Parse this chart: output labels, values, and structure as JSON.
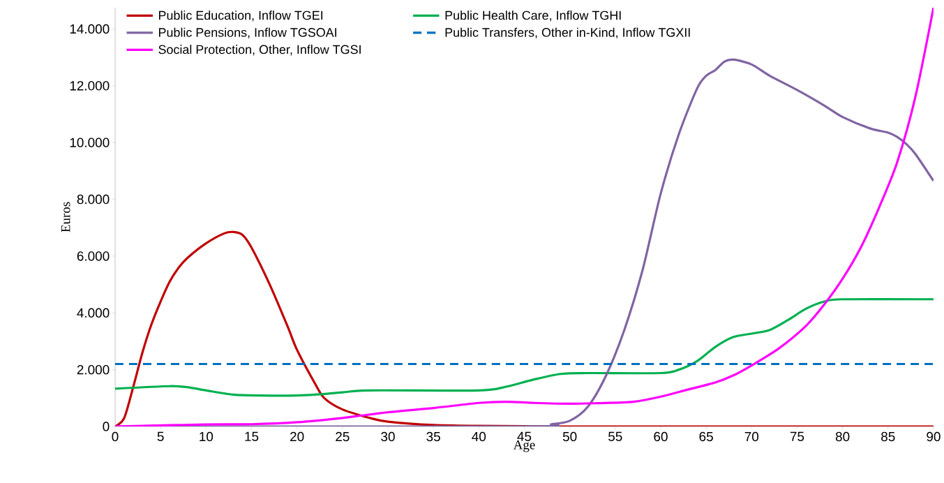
{
  "chart_data": {
    "type": "line",
    "xlabel": "Age",
    "ylabel": "Euros",
    "xlim": [
      0,
      90
    ],
    "ylim": [
      0,
      14750
    ],
    "xticks": [
      0,
      5,
      10,
      15,
      20,
      25,
      30,
      35,
      40,
      45,
      50,
      55,
      60,
      65,
      70,
      75,
      80,
      85,
      90
    ],
    "yticks": [
      {
        "value": 0,
        "label": "0"
      },
      {
        "value": 2000,
        "label": "2.000"
      },
      {
        "value": 4000,
        "label": "4.000"
      },
      {
        "value": 6000,
        "label": "6.000"
      },
      {
        "value": 8000,
        "label": "8.000"
      },
      {
        "value": 10000,
        "label": "10.000"
      },
      {
        "value": 12000,
        "label": "12.000"
      },
      {
        "value": 14000,
        "label": "14.000"
      }
    ],
    "legend": "top",
    "grid": false,
    "marker": "none",
    "series": [
      {
        "name": "Public Education, Inflow TGEI",
        "color": "#c00000",
        "x": [
          0,
          1,
          2,
          3,
          4,
          5,
          6,
          7,
          8,
          10,
          12,
          13,
          14,
          15,
          17,
          19,
          20,
          22,
          23,
          25,
          28,
          30,
          35,
          40,
          45,
          50,
          90
        ],
        "values": [
          0,
          300,
          1400,
          2600,
          3600,
          4400,
          5100,
          5600,
          5950,
          6450,
          6800,
          6850,
          6750,
          6300,
          5000,
          3500,
          2700,
          1500,
          1000,
          600,
          300,
          170,
          50,
          20,
          10,
          0,
          0
        ]
      },
      {
        "name": "Public Health Care, Inflow TGHI",
        "color": "#00b050",
        "x": [
          0,
          6,
          8,
          10,
          13,
          16,
          20,
          22,
          25,
          28,
          40,
          43,
          46,
          49,
          52,
          60,
          62,
          64,
          66,
          68,
          70,
          72,
          74,
          76,
          78,
          80,
          90
        ],
        "values": [
          1330,
          1420,
          1380,
          1270,
          1120,
          1090,
          1090,
          1120,
          1200,
          1270,
          1270,
          1400,
          1650,
          1850,
          1880,
          1880,
          2000,
          2300,
          2800,
          3150,
          3270,
          3400,
          3750,
          4150,
          4400,
          4480,
          4480
        ]
      },
      {
        "name": "Public Pensions, Inflow TGSOAI",
        "color": "#8064a2",
        "x": [
          0,
          45,
          48,
          50,
          52,
          54,
          56,
          58,
          60,
          62,
          64,
          65,
          66,
          67,
          68,
          70,
          72,
          75,
          78,
          80,
          83,
          85,
          86,
          87,
          88,
          90
        ],
        "values": [
          0,
          0,
          80,
          200,
          700,
          1800,
          3400,
          5500,
          8200,
          10300,
          11900,
          12350,
          12550,
          12850,
          12920,
          12750,
          12350,
          11850,
          11300,
          10900,
          10500,
          10350,
          10200,
          9950,
          9600,
          8650
        ]
      },
      {
        "name": "Public Transfers, Other in-Kind, Inflow TGXII",
        "color": "#0070c0",
        "line_style": "dashed",
        "x": [
          0,
          90
        ],
        "values": [
          2200,
          2200
        ]
      },
      {
        "name": "Social Protection, Other, Inflow TGSI",
        "color": "#ff00ff",
        "x": [
          0,
          10,
          15,
          20,
          25,
          30,
          35,
          40,
          43,
          46,
          50,
          53,
          57,
          60,
          63,
          66,
          68,
          70,
          73,
          76,
          78,
          80,
          82,
          84,
          86,
          88,
          90
        ],
        "values": [
          0,
          70,
          80,
          150,
          300,
          500,
          650,
          830,
          870,
          830,
          800,
          820,
          870,
          1050,
          1300,
          1550,
          1800,
          2150,
          2750,
          3550,
          4300,
          5200,
          6300,
          7700,
          9300,
          11600,
          14750
        ]
      }
    ]
  }
}
